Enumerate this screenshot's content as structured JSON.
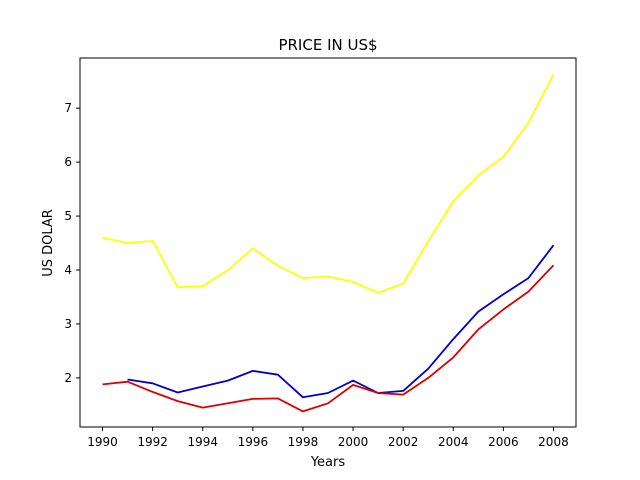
{
  "chart_data": {
    "type": "line",
    "title": "PRICE IN US$",
    "xlabel": "Years",
    "ylabel": "US DOLAR",
    "xlim": [
      1989.1,
      2008.9
    ],
    "ylim": [
      1.09,
      7.93
    ],
    "xticks": [
      1990,
      1992,
      1994,
      1996,
      1998,
      2000,
      2002,
      2004,
      2006,
      2008
    ],
    "yticks": [
      2,
      3,
      4,
      5,
      6,
      7
    ],
    "grid": false,
    "series": [
      {
        "color": "#ffff00",
        "x": [
          1990,
          1991,
          1992,
          1993,
          1994,
          1995,
          1996,
          1997,
          1998,
          1999,
          2000,
          2001,
          2002,
          2003,
          2004,
          2005,
          2006,
          2007,
          2008
        ],
        "values": [
          4.6,
          4.5,
          4.54,
          3.68,
          3.7,
          4.0,
          4.4,
          4.08,
          3.85,
          3.88,
          3.78,
          3.58,
          3.75,
          4.53,
          5.28,
          5.75,
          6.1,
          6.73,
          7.63
        ]
      },
      {
        "color": "#0000cc",
        "x": [
          1991,
          1992,
          1993,
          1994,
          1995,
          1996,
          1997,
          1998,
          1999,
          2000,
          2001,
          2002,
          2003,
          2004,
          2005,
          2006,
          2007,
          2008
        ],
        "values": [
          1.97,
          1.9,
          1.73,
          1.84,
          1.95,
          2.13,
          2.06,
          1.64,
          1.72,
          1.95,
          1.72,
          1.76,
          2.17,
          2.72,
          3.23,
          3.55,
          3.85,
          4.46
        ]
      },
      {
        "color": "#dd0000",
        "x": [
          1990,
          1991,
          1992,
          1993,
          1994,
          1995,
          1996,
          1997,
          1998,
          1999,
          2000,
          2001,
          2002,
          2003,
          2004,
          2005,
          2006,
          2007,
          2008
        ],
        "values": [
          1.88,
          1.93,
          1.74,
          1.57,
          1.45,
          1.53,
          1.61,
          1.62,
          1.38,
          1.53,
          1.87,
          1.72,
          1.69,
          2.0,
          2.38,
          2.9,
          3.27,
          3.6,
          4.09
        ]
      }
    ]
  }
}
